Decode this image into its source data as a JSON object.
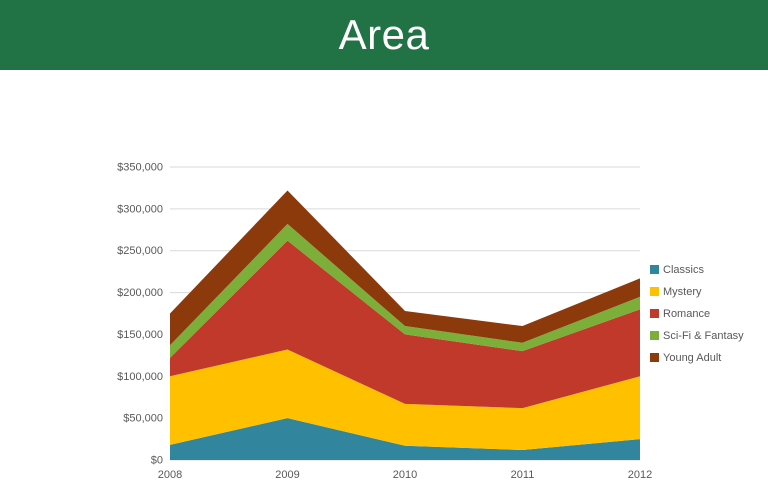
{
  "slide": {
    "title": "Area"
  },
  "colors": {
    "header_bg": "#217346",
    "title_text": "#FFFFFF",
    "background": "#FFFFFF",
    "gridline": "#D9D9D9",
    "axis_text": "#595959"
  },
  "chart_data": {
    "type": "area",
    "stacked": true,
    "title": "Area",
    "xlabel": "",
    "ylabel": "",
    "categories": [
      "2008",
      "2009",
      "2010",
      "2011",
      "2012"
    ],
    "series": [
      {
        "name": "Classics",
        "color": "#31859C",
        "values": [
          18000,
          50000,
          17000,
          12000,
          25000
        ]
      },
      {
        "name": "Mystery",
        "color": "#FFC000",
        "values": [
          82000,
          82000,
          50000,
          50000,
          75000
        ]
      },
      {
        "name": "Romance",
        "color": "#C0392B",
        "values": [
          22000,
          130000,
          83000,
          68000,
          80000
        ]
      },
      {
        "name": "Sci-Fi & Fantasy",
        "color": "#7CAF3A",
        "values": [
          15000,
          20000,
          10000,
          10000,
          15000
        ]
      },
      {
        "name": "Young Adult",
        "color": "#8C3A0B",
        "values": [
          38000,
          40000,
          18000,
          20000,
          22000
        ]
      }
    ],
    "ylim": [
      0,
      350000
    ],
    "y_tick_step": 50000,
    "y_tick_labels": [
      "$0",
      "$50,000",
      "$100,000",
      "$150,000",
      "$200,000",
      "$250,000",
      "$300,000",
      "$350,000"
    ],
    "grid": true,
    "legend_position": "right"
  }
}
